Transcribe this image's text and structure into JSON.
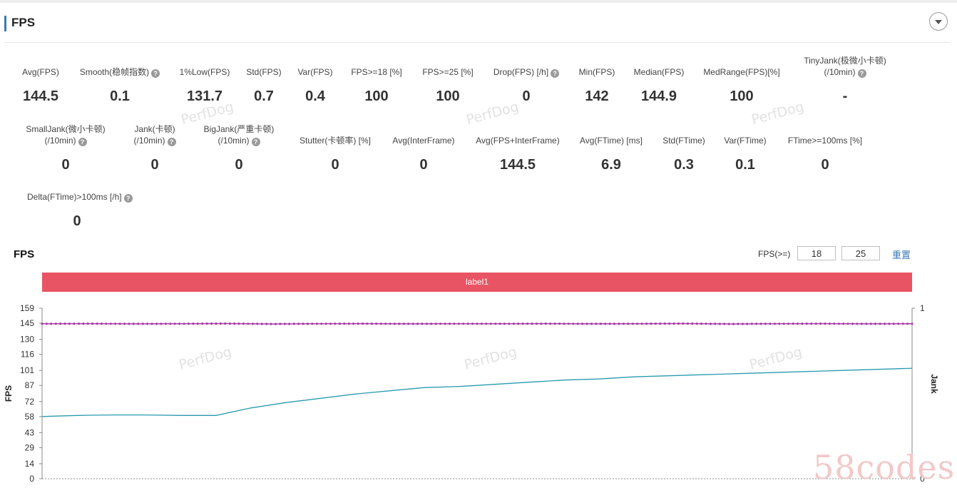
{
  "section": {
    "title": "FPS"
  },
  "metrics_row1": [
    {
      "label": "Avg(FPS)",
      "value": "144.5",
      "help": false
    },
    {
      "label": "Smooth(稳帧指数)",
      "value": "0.1",
      "help": true
    },
    {
      "label": "1%Low(FPS)",
      "value": "131.7",
      "help": false
    },
    {
      "label": "Std(FPS)",
      "value": "0.7",
      "help": false
    },
    {
      "label": "Var(FPS)",
      "value": "0.4",
      "help": false
    },
    {
      "label": "FPS>=18 [%]",
      "value": "100",
      "help": false
    },
    {
      "label": "FPS>=25 [%]",
      "value": "100",
      "help": false
    },
    {
      "label": "Drop(FPS) [/h]",
      "value": "0",
      "help": true
    },
    {
      "label": "Min(FPS)",
      "value": "142",
      "help": false
    },
    {
      "label": "Median(FPS)",
      "value": "144.9",
      "help": false
    },
    {
      "label": "MedRange(FPS)[%]",
      "value": "100",
      "help": false
    },
    {
      "label": "TinyJank(极微小卡顿)",
      "label2": "(/10min)",
      "value": "-",
      "help": true
    }
  ],
  "metrics_row2": [
    {
      "label": "SmallJank(微小卡顿)",
      "label2": "(/10min)",
      "value": "0",
      "help": true
    },
    {
      "label": "Jank(卡顿)",
      "label2": "(/10min)",
      "value": "0",
      "help": true
    },
    {
      "label": "BigJank(严重卡顿)",
      "label2": "(/10min)",
      "value": "0",
      "help": true
    },
    {
      "label": "Stutter(卡顿率) [%]",
      "value": "0",
      "help": false
    },
    {
      "label": "Avg(InterFrame)",
      "value": "0",
      "help": false
    },
    {
      "label": "Avg(FPS+InterFrame)",
      "value": "144.5",
      "help": false
    },
    {
      "label": "Avg(FTime) [ms]",
      "value": "6.9",
      "help": false
    },
    {
      "label": "Std(FTime)",
      "value": "0.3",
      "help": false
    },
    {
      "label": "Var(FTime)",
      "value": "0.1",
      "help": false
    },
    {
      "label": "FTime>=100ms [%]",
      "value": "0",
      "help": false
    }
  ],
  "metrics_row3": [
    {
      "label": "Delta(FTime)>100ms [/h]",
      "value": "0",
      "help": true
    }
  ],
  "watermark": "PerfDog",
  "chart": {
    "title": "FPS",
    "threshold_label": "FPS(>=)",
    "threshold_1": "18",
    "threshold_2": "25",
    "reset_label": "重置",
    "band_label": "label1",
    "y_axis_label": "FPS",
    "y2_axis_label": "Jank",
    "y2_ticks": [
      "1",
      "0"
    ]
  },
  "chart_data": {
    "type": "line",
    "ylabel": "FPS",
    "y2label": "Jank",
    "y_ticks": [
      159,
      145,
      130,
      116,
      101,
      87,
      72,
      58,
      43,
      29,
      14,
      0
    ],
    "ylim": [
      0,
      159
    ],
    "y2lim": [
      0,
      1
    ],
    "grid": false,
    "series": [
      {
        "color": "#a93aa9",
        "values": [
          144.5,
          144.6,
          144.4,
          144.5,
          144.7,
          144.3,
          144.5,
          144.6,
          144.4,
          144.5,
          144.5,
          144.6,
          144.4,
          144.5,
          144.7,
          144.3,
          144.5,
          144.6,
          144.4,
          144.5
        ]
      },
      {
        "color": "#2a9bb0",
        "values": [
          58,
          59,
          59.5,
          59.5,
          59,
          59,
          66,
          71,
          75,
          79,
          82,
          85,
          86,
          88,
          90,
          92,
          93,
          95,
          96,
          97,
          98,
          99,
          100,
          101,
          102,
          103
        ]
      }
    ],
    "watermark": "58codes"
  }
}
